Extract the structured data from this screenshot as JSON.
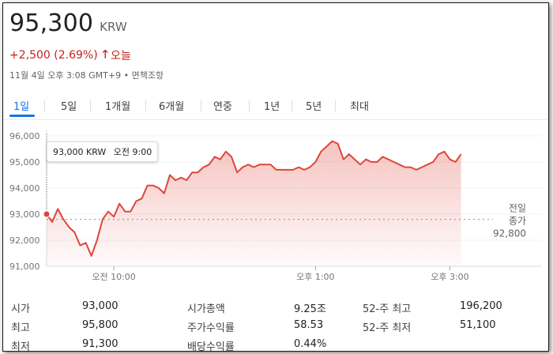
{
  "quote": {
    "price": "95,300",
    "currency": "KRW",
    "change": "+2,500 (2.69%)",
    "period": "오늘",
    "meta": "11월 4일 오후 3:08 GMT+9 • 면책조항",
    "colors": {
      "up": "#c5221f",
      "accent": "#1a73e8",
      "line": "#e0453a"
    },
    "arrow_icon": "arrow-up-icon"
  },
  "tabs": [
    {
      "label": "1일",
      "active": true
    },
    {
      "label": "5일",
      "active": false
    },
    {
      "label": "1개월",
      "active": false
    },
    {
      "label": "6개월",
      "active": false
    },
    {
      "label": "연중",
      "active": false
    },
    {
      "label": "1년",
      "active": false
    },
    {
      "label": "5년",
      "active": false
    },
    {
      "label": "최대",
      "active": false
    }
  ],
  "tooltip": {
    "price": "93,000 KRW",
    "time": "오전 9:00"
  },
  "chart_data": {
    "type": "line",
    "title": "",
    "xlabel": "",
    "ylabel": "",
    "ylim": [
      91000,
      96000
    ],
    "y_ticks": [
      "96,000",
      "95,000",
      "94,000",
      "93,000",
      "92,000",
      "91,000"
    ],
    "x_ticks": [
      "오전 10:00",
      "오후 1:00",
      "오후 3:00"
    ],
    "previous_close": {
      "label_line1": "전일",
      "label_line2": "종가",
      "value_label": "92,800",
      "value": 92800
    },
    "series": [
      {
        "x": [
          "09:00",
          "09:05",
          "09:10",
          "09:15",
          "09:20",
          "09:25",
          "09:30",
          "09:35",
          "09:40",
          "09:45",
          "09:50",
          "09:55",
          "10:00",
          "10:05",
          "10:10",
          "10:15",
          "10:20",
          "10:25",
          "10:30",
          "10:35",
          "10:40",
          "10:45",
          "10:50",
          "10:55",
          "11:00",
          "11:05",
          "11:10",
          "11:15",
          "11:20",
          "11:25",
          "11:30",
          "11:35",
          "11:40",
          "11:45",
          "11:50",
          "11:55",
          "12:00",
          "12:05",
          "12:10",
          "12:15",
          "12:20",
          "12:25",
          "12:30",
          "12:35",
          "12:40",
          "12:45",
          "12:50",
          "12:55",
          "13:00",
          "13:05",
          "13:10",
          "13:15",
          "13:20",
          "13:25",
          "13:30",
          "13:35",
          "13:40",
          "13:45",
          "13:50",
          "13:55",
          "14:00",
          "14:05",
          "14:10",
          "14:15",
          "14:20",
          "14:25",
          "14:30",
          "14:35",
          "14:40",
          "14:45",
          "14:50",
          "14:55",
          "15:00",
          "15:05",
          "15:10"
        ],
        "values": [
          93000,
          92700,
          93200,
          92800,
          92500,
          92300,
          91800,
          91900,
          91400,
          92000,
          92800,
          93100,
          92900,
          93400,
          93100,
          93100,
          93500,
          93600,
          94100,
          94100,
          94000,
          93800,
          94500,
          94300,
          94400,
          94300,
          94600,
          94600,
          94800,
          94900,
          95200,
          95100,
          95400,
          95200,
          94600,
          94800,
          94900,
          94800,
          94900,
          94900,
          94900,
          94700,
          94700,
          94700,
          94700,
          94800,
          94700,
          94800,
          95000,
          95400,
          95600,
          95800,
          95700,
          95100,
          95300,
          95100,
          94900,
          95100,
          95000,
          95000,
          95200,
          95100,
          95000,
          94900,
          94800,
          94800,
          94700,
          94800,
          94900,
          95000,
          95300,
          95400,
          95100,
          95000,
          95300
        ]
      }
    ]
  },
  "stats": {
    "rows": [
      [
        {
          "label": "시가",
          "value": "93,000"
        },
        {
          "label": "시가총액",
          "value": "9.25조"
        },
        {
          "label": "52-주 최고",
          "value": "196,200"
        }
      ],
      [
        {
          "label": "최고",
          "value": "95,800"
        },
        {
          "label": "주가수익률",
          "value": "58.53"
        },
        {
          "label": "52-주 최저",
          "value": "51,100"
        }
      ],
      [
        {
          "label": "최저",
          "value": "91,300"
        },
        {
          "label": "배당수익률",
          "value": "0.44%"
        },
        {
          "label": "",
          "value": ""
        }
      ]
    ]
  }
}
